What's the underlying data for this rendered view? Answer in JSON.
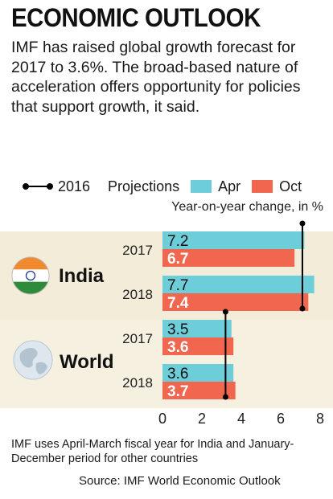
{
  "title": "ECONOMIC OUTLOOK",
  "description": "IMF has raised global growth forecast for 2017 to 3.6%. The broad-based nature of acceleration offers opportunity for policies that support growth, it said.",
  "legend": {
    "line_label": "2016",
    "projections_label": "Projections",
    "apr_label": "Apr",
    "oct_label": "Oct"
  },
  "unit_label": "Year-on-year change, in %",
  "colors": {
    "apr": "#6dcdd9",
    "oct": "#f0664f",
    "india_band": "#f3ecd9",
    "world_band": "#f6f0e0",
    "value_apr_text": "#111111",
    "value_oct_text": "#ffffff"
  },
  "chart_data": {
    "type": "bar",
    "orientation": "horizontal",
    "groups": [
      {
        "name": "India",
        "icon": "india-flag-icon",
        "rows": [
          {
            "year": "2017",
            "apr": 7.2,
            "oct": 6.7,
            "apr_label": "7.2",
            "oct_label": "6.7"
          },
          {
            "year": "2018",
            "apr": 7.7,
            "oct": 7.4,
            "apr_label": "7.7",
            "oct_label": "7.4"
          }
        ],
        "line_2016": 7.1
      },
      {
        "name": "World",
        "icon": "globe-icon",
        "rows": [
          {
            "year": "2017",
            "apr": 3.5,
            "oct": 3.6,
            "apr_label": "3.5",
            "oct_label": "3.6"
          },
          {
            "year": "2018",
            "apr": 3.6,
            "oct": 3.7,
            "apr_label": "3.6",
            "oct_label": "3.7"
          }
        ],
        "line_2016": 3.2
      }
    ],
    "series": [
      {
        "name": "Apr"
      },
      {
        "name": "Oct"
      }
    ],
    "xlim": [
      0,
      8
    ],
    "xticks": [
      "0",
      "2",
      "4",
      "6",
      "8"
    ],
    "grid": false,
    "legend_position": "top"
  },
  "footnote": "IMF uses April-March fiscal year for India and January-December period for other countries",
  "source": "Source: IMF World Economic Outlook"
}
